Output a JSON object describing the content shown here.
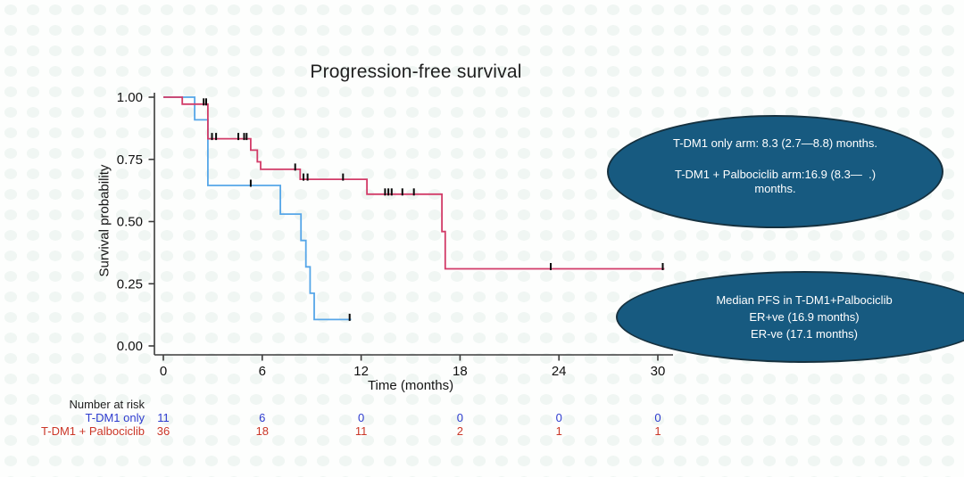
{
  "chart_data": {
    "type": "line",
    "subtype": "kaplan-meier-step",
    "title": "Progression-free survival",
    "xlabel": "Time (months)",
    "ylabel": "Survival probability",
    "xlim": [
      0,
      31
    ],
    "ylim": [
      0,
      1
    ],
    "grid": false,
    "x_ticks": [
      0,
      6,
      12,
      18,
      24,
      30
    ],
    "y_ticks": [
      "0.00",
      "0.25",
      "0.50",
      "0.75",
      "1.00"
    ],
    "series": [
      {
        "name": "T-DM1 only",
        "color": "#56a6e8",
        "steps": [
          [
            0,
            1.0
          ],
          [
            1.9,
            0.909
          ],
          [
            2.7,
            0.645
          ],
          [
            7.1,
            0.53
          ],
          [
            8.35,
            0.424
          ],
          [
            8.65,
            0.318
          ],
          [
            8.9,
            0.212
          ],
          [
            9.15,
            0.106
          ]
        ],
        "end_time": 11.4,
        "censors": [
          [
            5.3,
            0.645
          ],
          [
            11.3,
            0.106
          ]
        ]
      },
      {
        "name": "T-DM1 + Palbociclib",
        "color": "#d23b68",
        "steps": [
          [
            0,
            1.0
          ],
          [
            1.15,
            0.972
          ],
          [
            2.7,
            0.833
          ],
          [
            5.3,
            0.787
          ],
          [
            5.7,
            0.74
          ],
          [
            5.9,
            0.71
          ],
          [
            8.3,
            0.67
          ],
          [
            12.35,
            0.61
          ],
          [
            16.9,
            0.46
          ],
          [
            17.1,
            0.31
          ]
        ],
        "end_time": 30.4,
        "censors": [
          [
            2.45,
            0.972
          ],
          [
            2.6,
            0.972
          ],
          [
            2.95,
            0.833
          ],
          [
            3.2,
            0.833
          ],
          [
            4.55,
            0.833
          ],
          [
            4.9,
            0.833
          ],
          [
            5.05,
            0.833
          ],
          [
            8.0,
            0.71
          ],
          [
            8.5,
            0.67
          ],
          [
            8.75,
            0.67
          ],
          [
            10.9,
            0.67
          ],
          [
            13.45,
            0.61
          ],
          [
            13.65,
            0.61
          ],
          [
            13.85,
            0.61
          ],
          [
            14.5,
            0.61
          ],
          [
            15.2,
            0.61
          ],
          [
            23.5,
            0.31
          ],
          [
            30.3,
            0.31
          ]
        ]
      }
    ]
  },
  "annotations": {
    "bubble1": {
      "line1": "T-DM1 only arm: 8.3 (2.7—8.8) months.",
      "line2": "T-DM1 + Palbociclib arm:16.9 (8.3—  .)",
      "line3": "months.",
      "fill": "#175a80",
      "text_color": "#ffffff"
    },
    "bubble2": {
      "line1": "Median PFS in T-DM1+Palbociclib",
      "line2": "ER+ve (16.9 months)",
      "line3": "ER-ve (17.1 months)",
      "fill": "#175a80",
      "text_color": "#ffffff"
    }
  },
  "risk_table": {
    "header": "Number at risk",
    "rows": [
      {
        "label": "T-DM1 only",
        "color": "#2d3bcf",
        "values": [
          "11",
          "6",
          "0",
          "0",
          "0",
          "0"
        ]
      },
      {
        "label": "T-DM1 + Palbociclib",
        "color": "#cb3627",
        "values": [
          "36",
          "18",
          "11",
          "2",
          "1",
          "1"
        ]
      }
    ]
  }
}
